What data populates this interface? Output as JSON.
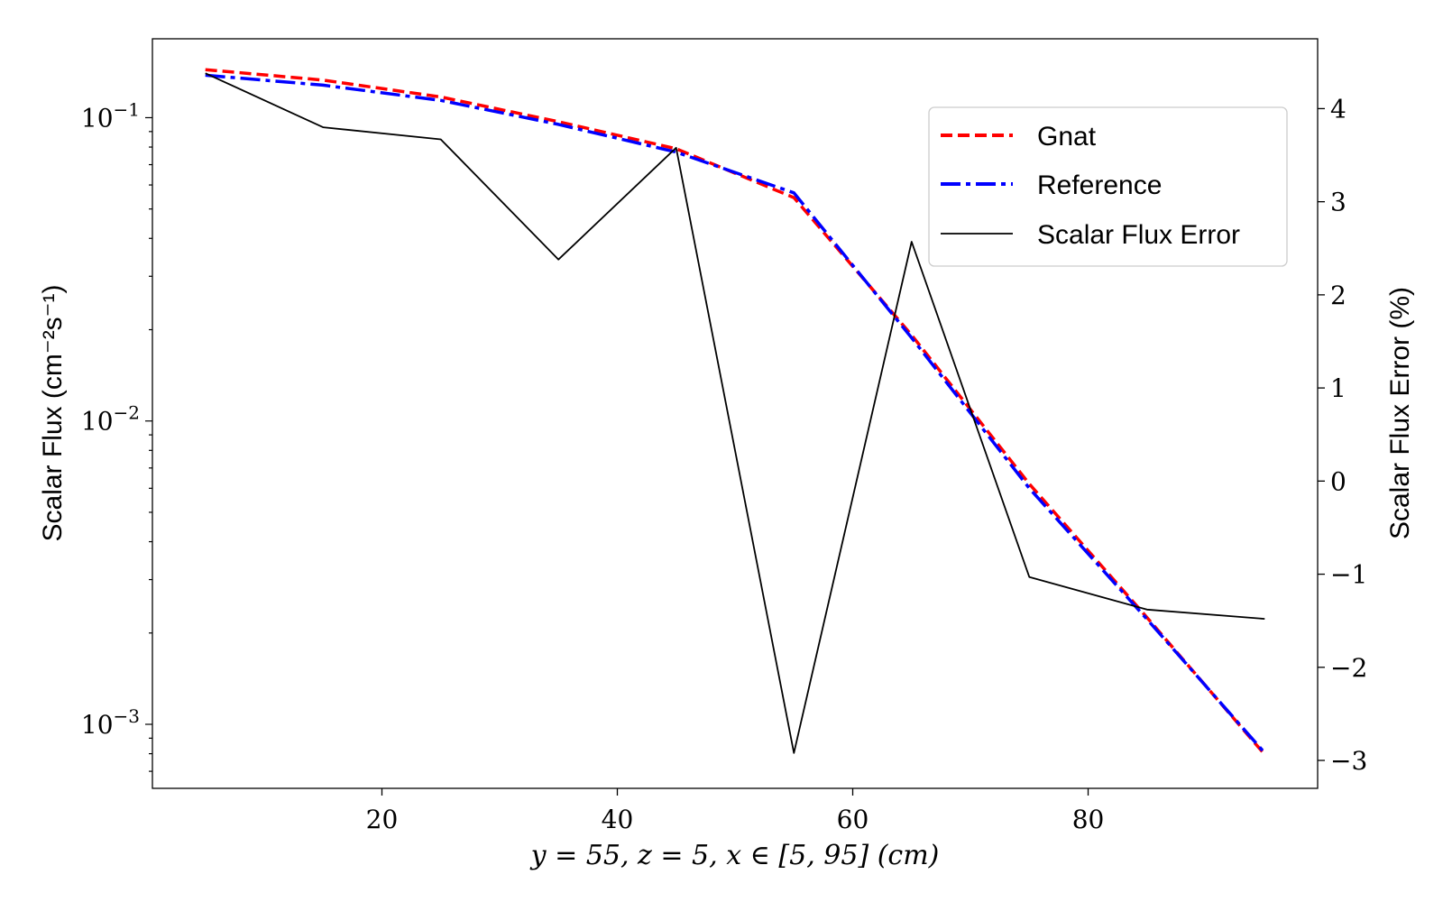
{
  "chart_data": {
    "type": "line",
    "title": "",
    "xlabel": "y = 55, z = 5, x ∈ [5, 95] (cm)",
    "ylabel_left": "Scalar Flux (cm⁻²s⁻¹)",
    "ylabel_right": "Scalar Flux Error (%)",
    "x_ticks": [
      20,
      40,
      60,
      80
    ],
    "y_left_ticks": [
      {
        "base": "10",
        "exp": "−1",
        "value": 0.1
      },
      {
        "base": "10",
        "exp": "−2",
        "value": 0.01
      },
      {
        "base": "10",
        "exp": "−3",
        "value": 0.001
      }
    ],
    "y_right_ticks": [
      "4",
      "3",
      "2",
      "1",
      "0",
      "−1",
      "−2",
      "−3"
    ],
    "y_right_tick_values": [
      4,
      3,
      2,
      1,
      0,
      -1,
      -2,
      -3
    ],
    "xlim": [
      0.5,
      99.5
    ],
    "ylim_left": [
      0.000615,
      0.182
    ],
    "ylim_left_scale": "log",
    "ylim_right": [
      -3.3,
      4.75
    ],
    "legend_position": "top-right",
    "series": [
      {
        "name": "Gnat",
        "axis": "left",
        "color": "#ff0000",
        "style": "dashed",
        "x": [
          5,
          15,
          25,
          35,
          45,
          55,
          65,
          75,
          85,
          95
        ],
        "values": [
          0.144,
          0.133,
          0.117,
          0.097,
          0.079,
          0.0545,
          0.0192,
          0.0062,
          0.00225,
          0.000795
        ]
      },
      {
        "name": "Reference",
        "axis": "left",
        "color": "#0000ff",
        "style": "dashdot",
        "x": [
          5,
          15,
          25,
          35,
          45,
          55,
          65,
          75,
          85,
          95
        ],
        "values": [
          0.138,
          0.128,
          0.114,
          0.095,
          0.077,
          0.0565,
          0.0188,
          0.006,
          0.00222,
          0.000805
        ]
      },
      {
        "name": "Scalar Flux Error",
        "axis": "right",
        "color": "#000000",
        "style": "solid",
        "x": [
          5,
          15,
          25,
          35,
          45,
          55,
          65,
          75,
          85,
          95
        ],
        "values": [
          4.38,
          3.8,
          3.67,
          2.38,
          3.58,
          -2.92,
          2.57,
          -1.03,
          -1.38,
          -1.48
        ]
      }
    ]
  }
}
